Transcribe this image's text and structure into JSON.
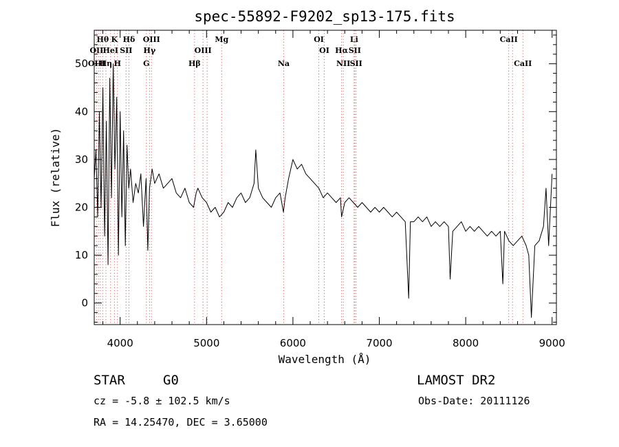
{
  "chart_data": {
    "type": "line",
    "title": "spec-55892-F9202_sp13-175.fits",
    "xlabel": "Wavelength (Å)",
    "ylabel": "Flux (relative)",
    "xlim": [
      3700,
      9050
    ],
    "ylim": [
      -4.5,
      57
    ],
    "grid": false,
    "x_ticks": [
      4000,
      5000,
      6000,
      7000,
      8000,
      9000
    ],
    "y_ticks": [
      0,
      10,
      20,
      30,
      40,
      50
    ],
    "series": [
      {
        "color": "#000000",
        "x": [
          3700,
          3720,
          3740,
          3760,
          3780,
          3800,
          3820,
          3840,
          3860,
          3880,
          3900,
          3920,
          3940,
          3960,
          3980,
          4000,
          4020,
          4040,
          4060,
          4080,
          4100,
          4120,
          4150,
          4180,
          4210,
          4240,
          4270,
          4300,
          4320,
          4340,
          4370,
          4400,
          4450,
          4500,
          4550,
          4600,
          4650,
          4700,
          4750,
          4800,
          4850,
          4880,
          4900,
          4950,
          5000,
          5050,
          5100,
          5150,
          5200,
          5250,
          5300,
          5350,
          5400,
          5450,
          5500,
          5550,
          5570,
          5600,
          5650,
          5700,
          5750,
          5800,
          5850,
          5890,
          5910,
          5950,
          6000,
          6050,
          6100,
          6150,
          6200,
          6250,
          6300,
          6350,
          6400,
          6450,
          6500,
          6550,
          6563,
          6600,
          6650,
          6700,
          6750,
          6800,
          6850,
          6900,
          6950,
          7000,
          7050,
          7100,
          7150,
          7200,
          7250,
          7300,
          7340,
          7360,
          7400,
          7450,
          7500,
          7550,
          7600,
          7650,
          7700,
          7750,
          7800,
          7820,
          7850,
          7900,
          7950,
          8000,
          8050,
          8100,
          8150,
          8200,
          8250,
          8300,
          8350,
          8400,
          8430,
          8450,
          8500,
          8550,
          8600,
          8650,
          8700,
          8730,
          8760,
          8800,
          8850,
          8900,
          8930,
          8960,
          9000
        ],
        "y": [
          26,
          32,
          18,
          40,
          20,
          45,
          14,
          38,
          8,
          47,
          22,
          50,
          28,
          43,
          10,
          40,
          18,
          36,
          12,
          33,
          24,
          28,
          21,
          25,
          23,
          27,
          16,
          26,
          11,
          24,
          28,
          25,
          27,
          24,
          25,
          26,
          23,
          22,
          24,
          21,
          20,
          23,
          24,
          22,
          21,
          19,
          20,
          18,
          19,
          21,
          20,
          22,
          23,
          21,
          22,
          25,
          32,
          24,
          22,
          21,
          20,
          22,
          23,
          19,
          22,
          26,
          30,
          28,
          29,
          27,
          26,
          25,
          24,
          22,
          23,
          22,
          21,
          22,
          18,
          21,
          22,
          21,
          20,
          21,
          20,
          19,
          20,
          19,
          20,
          19,
          18,
          19,
          18,
          17,
          1,
          17,
          17,
          18,
          17,
          18,
          16,
          17,
          16,
          17,
          16,
          5,
          15,
          16,
          17,
          15,
          16,
          15,
          16,
          15,
          14,
          15,
          14,
          15,
          4,
          15,
          13,
          12,
          13,
          14,
          12,
          10,
          -3,
          12,
          13,
          16,
          24,
          12,
          27
        ]
      }
    ],
    "line_markers": {
      "row1": [
        {
          "label": "Hθ",
          "x": 3798
        },
        {
          "label": "K",
          "x": 3934
        },
        {
          "label": "Hδ",
          "x": 4102
        },
        {
          "label": "OIII",
          "x": 4363
        },
        {
          "label": "Mg",
          "x": 5175
        },
        {
          "label": "OI",
          "x": 6300
        },
        {
          "label": "Li",
          "x": 6708
        },
        {
          "label": "CaII",
          "x": 8498
        }
      ],
      "row2": [
        {
          "label": "OII",
          "x": 3727
        },
        {
          "label": "HeI",
          "x": 3889
        },
        {
          "label": "SII",
          "x": 4069
        },
        {
          "label": "Hγ",
          "x": 4340
        },
        {
          "label": "OIII",
          "x": 4959
        },
        {
          "label": "OI",
          "x": 6363
        },
        {
          "label": "Hα",
          "x": 6563
        },
        {
          "label": "SII",
          "x": 6716
        }
      ],
      "row3": [
        {
          "label": "OIII",
          "x": 3727
        },
        {
          "label": "Hη",
          "x": 3835
        },
        {
          "label": "H",
          "x": 3969
        },
        {
          "label": "G",
          "x": 4304
        },
        {
          "label": "Hβ",
          "x": 4861
        },
        {
          "label": "Na",
          "x": 5893
        },
        {
          "label": "NII",
          "x": 6583
        },
        {
          "label": "SII",
          "x": 6731
        },
        {
          "label": "CaII",
          "x": 8662
        }
      ],
      "extra_lines_x": [
        5007,
        3750,
        3771,
        8542
      ]
    }
  },
  "info": {
    "class": "STAR",
    "subclass": "G0",
    "survey": "LAMOST DR2",
    "cz": "cz = -5.8 ± 102.5 km/s",
    "obs_date": "Obs-Date: 20111126",
    "radec": "RA =  14.25470, DEC =   3.65000"
  }
}
